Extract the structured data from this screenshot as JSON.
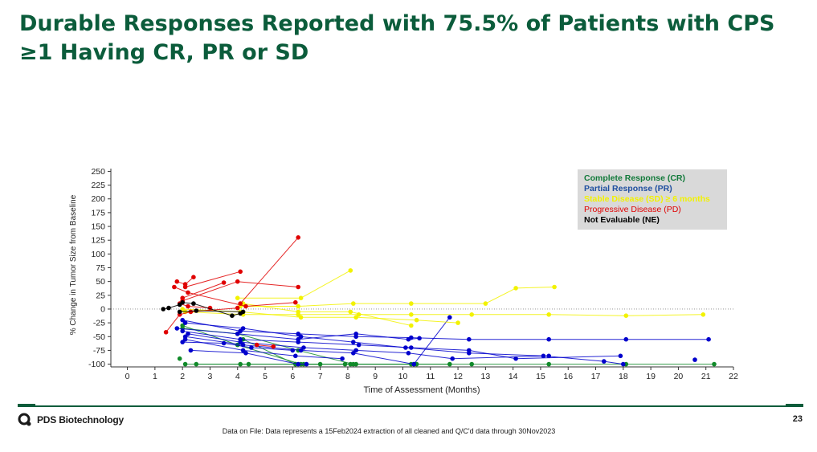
{
  "slide": {
    "title": "Durable Responses Reported with 75.5% of Patients with CPS ≥1 Having CR, PR or SD",
    "logo_text": "PDS Biotechnology",
    "page_number": "23",
    "source_note": "Data on File: Data represents a 15Feb2024 extraction of all cleaned and Q/C'd data through 30Nov2023"
  },
  "chart_data": {
    "type": "line",
    "xlabel": "Time of Assessment (Months)",
    "ylabel": "% Change in Tumor Size from Baseline",
    "xlim": [
      -0.6,
      22
    ],
    "ylim": [
      -105,
      255
    ],
    "xticks": [
      0,
      1,
      2,
      3,
      4,
      5,
      6,
      7,
      8,
      9,
      10,
      11,
      12,
      13,
      14,
      15,
      16,
      17,
      18,
      19,
      20,
      21,
      22
    ],
    "yticks": [
      250,
      225,
      200,
      175,
      150,
      125,
      100,
      75,
      50,
      25,
      0,
      -25,
      -50,
      -75,
      -100
    ],
    "reference_line_y": 0,
    "legend_position": "top-right",
    "legend": [
      {
        "label": "Complete Response (CR)",
        "color": "#127a3a"
      },
      {
        "label": "Partial Response (PR)",
        "color": "#1f4fa0"
      },
      {
        "label": "Stable Disease (SD) ≥ 6 months",
        "color": "#f2f200"
      },
      {
        "label": "Progressive Disease (PD)",
        "color": "#e00000"
      },
      {
        "label": "Not Evaluable (NE)",
        "color": "#000000"
      }
    ],
    "series": [
      {
        "group": "CR",
        "color": "#118a2a",
        "points": [
          [
            2,
            -30
          ],
          [
            4,
            -65
          ],
          [
            6.3,
            -100
          ],
          [
            8.3,
            -100
          ],
          [
            10.5,
            -100
          ],
          [
            12.5,
            -100
          ],
          [
            15.3,
            -100
          ],
          [
            18.1,
            -100
          ],
          [
            21.3,
            -100
          ]
        ]
      },
      {
        "group": "CR",
        "color": "#118a2a",
        "points": [
          [
            2,
            -35
          ],
          [
            4,
            -45
          ],
          [
            6.2,
            -75
          ],
          [
            8.2,
            -100
          ],
          [
            10.3,
            -100
          ]
        ]
      },
      {
        "group": "CR",
        "color": "#118a2a",
        "points": [
          [
            2.1,
            -100
          ],
          [
            4.1,
            -100
          ],
          [
            6.1,
            -100
          ],
          [
            8.1,
            -100
          ]
        ]
      },
      {
        "group": "CR",
        "color": "#118a2a",
        "points": [
          [
            1.9,
            -90
          ]
        ]
      },
      {
        "group": "CR",
        "color": "#118a2a",
        "points": [
          [
            2.5,
            -100
          ],
          [
            4.4,
            -100
          ],
          [
            6.4,
            -100
          ],
          [
            7,
            -100
          ]
        ]
      },
      {
        "group": "CR",
        "color": "#118a2a",
        "points": [
          [
            4.2,
            -55
          ],
          [
            6.1,
            -100
          ],
          [
            7.9,
            -100
          ],
          [
            10.4,
            -100
          ],
          [
            11.7,
            -100
          ]
        ]
      },
      {
        "group": "PR",
        "color": "#0000cc",
        "points": [
          [
            2,
            -20
          ],
          [
            4.1,
            -40
          ],
          [
            6.2,
            -45
          ],
          [
            8.3,
            -50
          ],
          [
            10.3,
            -52
          ],
          [
            12.4,
            -55
          ],
          [
            15.3,
            -55
          ],
          [
            18.1,
            -55
          ],
          [
            21.1,
            -55
          ]
        ]
      },
      {
        "group": "PR",
        "color": "#0000cc",
        "points": [
          [
            2.1,
            -25
          ],
          [
            4.2,
            -35
          ],
          [
            6.3,
            -50
          ],
          [
            8.2,
            -60
          ],
          [
            10.1,
            -70
          ],
          [
            12.4,
            -80
          ],
          [
            15.1,
            -85
          ],
          [
            17.3,
            -95
          ],
          [
            18,
            -100
          ]
        ]
      },
      {
        "group": "PR",
        "color": "#0000cc",
        "points": [
          [
            2,
            -40
          ],
          [
            4.1,
            -55
          ],
          [
            6.2,
            -60
          ],
          [
            8.4,
            -65
          ],
          [
            10.3,
            -70
          ],
          [
            12.4,
            -75
          ],
          [
            14.1,
            -90
          ],
          [
            17.9,
            -85
          ]
        ]
      },
      {
        "group": "PR",
        "color": "#0000cc",
        "points": [
          [
            2.1,
            -50
          ],
          [
            4.2,
            -65
          ],
          [
            6.3,
            -75
          ],
          [
            8.2,
            -80
          ],
          [
            10.4,
            -100
          ],
          [
            11.7,
            -15
          ]
        ]
      },
      {
        "group": "PR",
        "color": "#0000cc",
        "points": [
          [
            2.2,
            -45
          ],
          [
            4.1,
            -60
          ],
          [
            6.4,
            -70
          ],
          [
            8.3,
            -75
          ],
          [
            10.2,
            -80
          ],
          [
            11.8,
            -90
          ],
          [
            15.3,
            -85
          ]
        ]
      },
      {
        "group": "PR",
        "color": "#0000cc",
        "points": [
          [
            1.8,
            -35
          ],
          [
            4,
            -45
          ],
          [
            6.2,
            -55
          ],
          [
            8.3,
            -45
          ],
          [
            10.2,
            -55
          ],
          [
            10.6,
            -53
          ]
        ]
      },
      {
        "group": "PR",
        "color": "#0000cc",
        "points": [
          [
            2.3,
            -75
          ],
          [
            4.3,
            -80
          ],
          [
            6.2,
            -100
          ],
          [
            6.5,
            -100
          ]
        ]
      },
      {
        "group": "PR",
        "color": "#0000cc",
        "points": [
          [
            2.1,
            -55
          ],
          [
            4.2,
            -75
          ],
          [
            6.1,
            -85
          ],
          [
            7.8,
            -90
          ]
        ]
      },
      {
        "group": "PR",
        "color": "#0000cc",
        "points": [
          [
            2,
            -60
          ],
          [
            3.5,
            -62
          ],
          [
            4.5,
            -70
          ],
          [
            6,
            -75
          ]
        ]
      },
      {
        "group": "PR",
        "color": "#0000cc",
        "points": [
          [
            20.6,
            -92
          ]
        ]
      },
      {
        "group": "SD",
        "color": "#f2f200",
        "points": [
          [
            4,
            20
          ],
          [
            6.3,
            20
          ],
          [
            8.1,
            70
          ]
        ]
      },
      {
        "group": "SD",
        "color": "#f2f200",
        "points": [
          [
            4.1,
            5
          ],
          [
            6.2,
            5
          ],
          [
            8.2,
            10
          ],
          [
            10.3,
            10
          ],
          [
            13,
            10
          ],
          [
            14.1,
            38
          ],
          [
            15.5,
            40
          ]
        ]
      },
      {
        "group": "SD",
        "color": "#f2f200",
        "points": [
          [
            2.1,
            -5
          ],
          [
            4.2,
            -10
          ],
          [
            6.2,
            -10
          ],
          [
            8.4,
            -10
          ],
          [
            10.3,
            -10
          ],
          [
            12.5,
            -10
          ],
          [
            15.3,
            -10
          ],
          [
            18.1,
            -12
          ],
          [
            20.9,
            -10
          ]
        ]
      },
      {
        "group": "SD",
        "color": "#f2f200",
        "points": [
          [
            2,
            0
          ],
          [
            4.1,
            -5
          ],
          [
            6.3,
            -15
          ],
          [
            8.3,
            -15
          ],
          [
            10.5,
            -20
          ],
          [
            12,
            -25
          ]
        ]
      },
      {
        "group": "SD",
        "color": "#f2f200",
        "points": [
          [
            4.2,
            10
          ],
          [
            6.2,
            -5
          ],
          [
            8.1,
            -5
          ],
          [
            10.3,
            -30
          ]
        ]
      },
      {
        "group": "PD",
        "color": "#e00000",
        "points": [
          [
            4.1,
            10
          ],
          [
            6.2,
            130
          ]
        ]
      },
      {
        "group": "PD",
        "color": "#e00000",
        "points": [
          [
            2,
            15
          ],
          [
            4,
            50
          ],
          [
            6.2,
            40
          ]
        ]
      },
      {
        "group": "PD",
        "color": "#e00000",
        "points": [
          [
            2.1,
            40
          ],
          [
            4.1,
            68
          ]
        ]
      },
      {
        "group": "PD",
        "color": "#e00000",
        "points": [
          [
            2,
            20
          ],
          [
            3.5,
            48
          ]
        ]
      },
      {
        "group": "PD",
        "color": "#e00000",
        "points": [
          [
            1.8,
            50
          ],
          [
            2.1,
            45
          ],
          [
            2.4,
            58
          ]
        ]
      },
      {
        "group": "PD",
        "color": "#e00000",
        "points": [
          [
            1.7,
            40
          ],
          [
            2.2,
            30
          ],
          [
            4.3,
            5
          ],
          [
            6.1,
            12
          ]
        ]
      },
      {
        "group": "PD",
        "color": "#e00000",
        "points": [
          [
            1.4,
            -42
          ],
          [
            1.9,
            -10
          ],
          [
            2.3,
            -5
          ],
          [
            4,
            2
          ]
        ]
      },
      {
        "group": "PD",
        "color": "#e00000",
        "points": [
          [
            1.9,
            10
          ],
          [
            2.2,
            5
          ],
          [
            3,
            2
          ]
        ]
      },
      {
        "group": "PD",
        "color": "#e00000",
        "points": [
          [
            4.7,
            -65
          ],
          [
            5.3,
            -68
          ]
        ]
      },
      {
        "group": "NE",
        "color": "#000000",
        "points": [
          [
            1.3,
            0
          ],
          [
            1.5,
            2
          ],
          [
            1.9,
            8
          ]
        ]
      },
      {
        "group": "NE",
        "color": "#000000",
        "points": [
          [
            2,
            12
          ],
          [
            2.4,
            10
          ],
          [
            3.8,
            -12
          ],
          [
            4.1,
            -8
          ]
        ]
      },
      {
        "group": "NE",
        "color": "#000000",
        "points": [
          [
            1.9,
            -5
          ],
          [
            2.5,
            -3
          ],
          [
            4.2,
            -5
          ]
        ]
      }
    ]
  }
}
